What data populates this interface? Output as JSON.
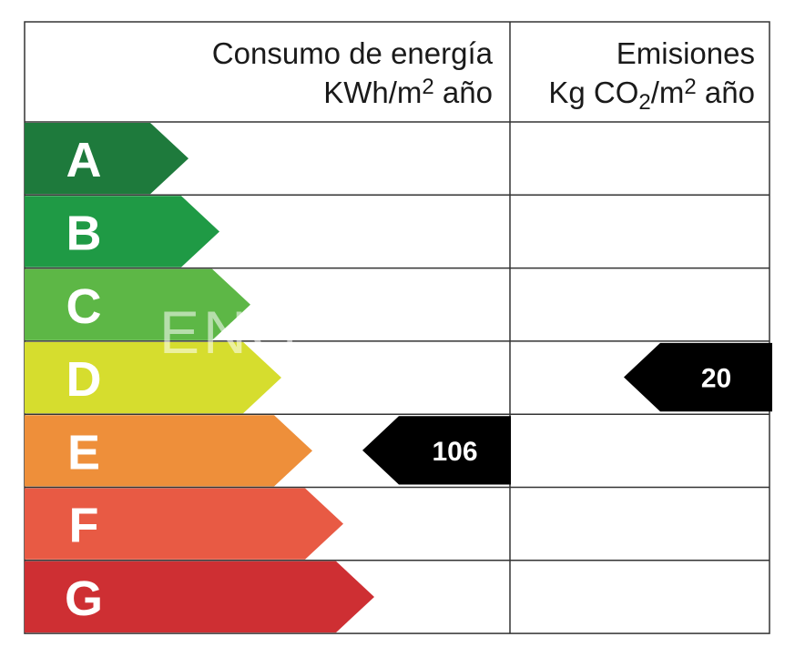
{
  "header": {
    "consumption_line1": "Consumo de energía",
    "consumption_line2_pre": "KWh/m",
    "consumption_line2_sup": "2",
    "consumption_line2_post": " año",
    "emissions_line1": "Emisiones",
    "emissions_line2_pre": "Kg CO",
    "emissions_line2_sub": "2",
    "emissions_line2_mid": "/m",
    "emissions_line2_sup": "2",
    "emissions_line2_post": " año"
  },
  "ratings": [
    {
      "letter": "A",
      "color": "#1e7a3c"
    },
    {
      "letter": "B",
      "color": "#1f9a45"
    },
    {
      "letter": "C",
      "color": "#5db746"
    },
    {
      "letter": "D",
      "color": "#d6dd2e"
    },
    {
      "letter": "E",
      "color": "#ee8f3a"
    },
    {
      "letter": "F",
      "color": "#e85a44"
    },
    {
      "letter": "G",
      "color": "#ce2f33"
    }
  ],
  "consumption": {
    "rating": "E",
    "value": "106"
  },
  "emissions": {
    "rating": "D",
    "value": "20"
  },
  "watermark": "ENG"
}
